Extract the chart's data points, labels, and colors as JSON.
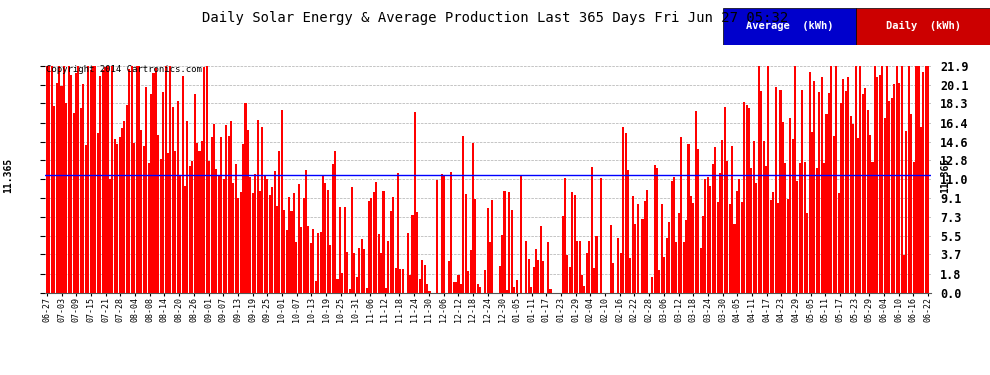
{
  "title": "Daily Solar Energy & Average Production Last 365 Days Fri Jun 27 05:32",
  "copyright": "Copyright 2014 Cartronics.com",
  "average_value": 11.365,
  "average_label": "11.365",
  "yticks": [
    0.0,
    1.8,
    3.7,
    5.5,
    7.3,
    9.1,
    11.0,
    12.8,
    14.6,
    16.4,
    18.3,
    20.1,
    21.9
  ],
  "ymax": 22.5,
  "ymin": 0.0,
  "bar_color": "#ff0000",
  "avg_line_color": "#0000ff",
  "bg_color": "#ffffff",
  "grid_color": "#999999",
  "legend_avg_bg": "#0000cc",
  "legend_daily_bg": "#cc0000",
  "legend_avg_text": "Average  (kWh)",
  "legend_daily_text": "Daily  (kWh)",
  "xtick_labels": [
    "06-27",
    "07-03",
    "07-09",
    "07-15",
    "07-21",
    "07-28",
    "08-04",
    "08-08",
    "08-14",
    "08-20",
    "08-26",
    "09-01",
    "09-07",
    "09-13",
    "09-19",
    "09-25",
    "10-01",
    "10-07",
    "10-13",
    "10-19",
    "10-25",
    "10-31",
    "11-06",
    "11-12",
    "11-18",
    "11-24",
    "11-30",
    "12-06",
    "12-12",
    "12-18",
    "12-24",
    "12-30",
    "01-05",
    "01-11",
    "01-17",
    "01-23",
    "01-29",
    "02-04",
    "02-10",
    "02-16",
    "02-22",
    "02-28",
    "03-06",
    "03-12",
    "03-18",
    "03-24",
    "03-30",
    "04-05",
    "04-11",
    "04-17",
    "04-23",
    "04-29",
    "05-05",
    "05-11",
    "05-17",
    "05-23",
    "05-29",
    "06-04",
    "06-10",
    "06-16",
    "06-22"
  ]
}
